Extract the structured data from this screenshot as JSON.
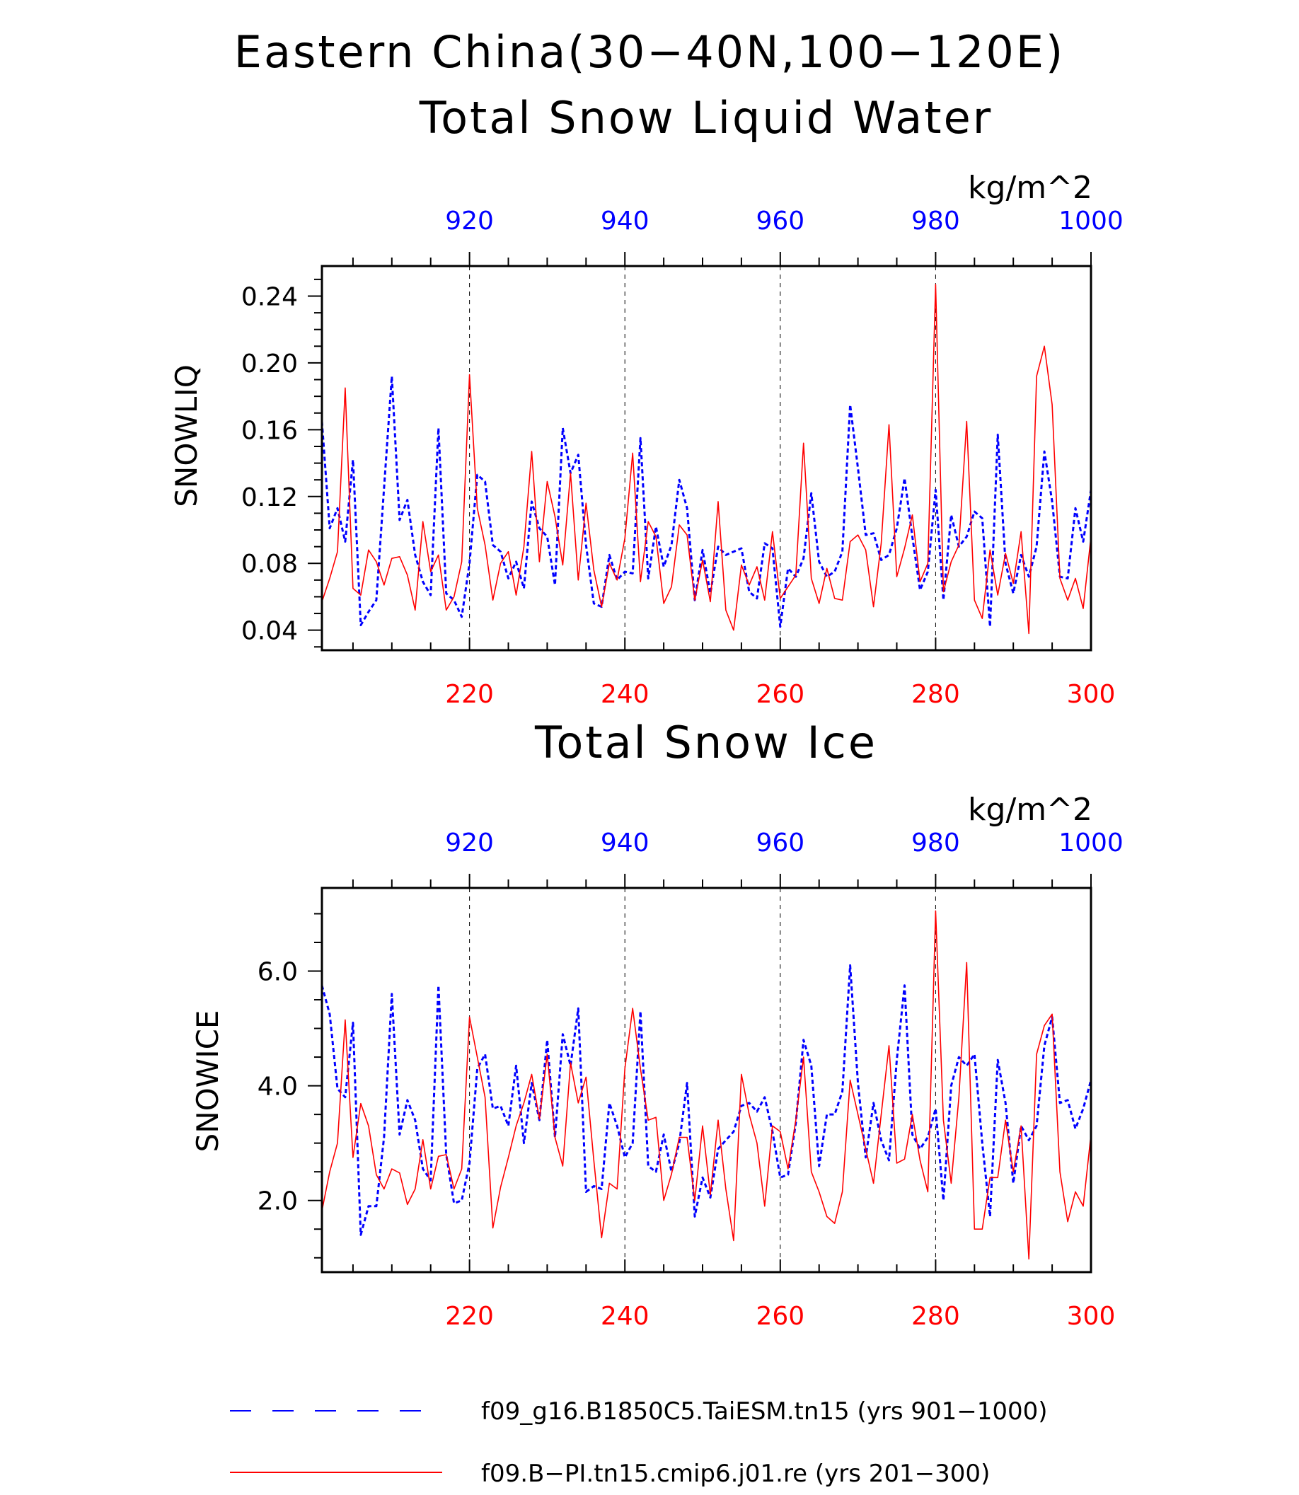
{
  "figure": {
    "title_line1": "Eastern China(30−40N,100−120E)",
    "legend": [
      {
        "label": "f09_g16.B1850C5.TaiESM.tn15 (yrs 901−1000)",
        "color": "#0000ff",
        "style": "dashed"
      },
      {
        "label": "f09.B−PI.tn15.cmip6.j01.re (yrs 201−300)",
        "color": "#ff0000",
        "style": "solid"
      }
    ]
  },
  "chart_data": [
    {
      "type": "line",
      "title": "Total Snow Liquid Water",
      "units": "kg/m^2",
      "ylabel": "SNOWLIQ",
      "ylim": [
        0.028,
        0.258
      ],
      "yticks": [
        0.04,
        0.08,
        0.12,
        0.16,
        0.2,
        0.24
      ],
      "yticklabels": [
        "0.04",
        "0.08",
        "0.12",
        "0.16",
        "0.20",
        "0.24"
      ],
      "bottom_axis": {
        "range": [
          201,
          300
        ],
        "ticks": [
          220,
          240,
          260,
          280,
          300
        ],
        "color": "#ff0000"
      },
      "top_axis": {
        "range": [
          901,
          1000
        ],
        "ticks": [
          920,
          940,
          960,
          980,
          1000
        ],
        "color": "#0000ff"
      },
      "gridlines_x": [
        220,
        240,
        260,
        280
      ],
      "series": [
        {
          "name": "f09.B−PI.tn15.cmip6.j01.re (yrs 201−300)",
          "color": "#ff0000",
          "style": "solid",
          "x_start": 201,
          "values": [
            0.057,
            0.071,
            0.087,
            0.185,
            0.065,
            0.061,
            0.088,
            0.081,
            0.067,
            0.083,
            0.084,
            0.073,
            0.052,
            0.105,
            0.075,
            0.085,
            0.052,
            0.06,
            0.081,
            0.193,
            0.113,
            0.091,
            0.058,
            0.08,
            0.087,
            0.061,
            0.09,
            0.147,
            0.081,
            0.129,
            0.108,
            0.079,
            0.134,
            0.07,
            0.116,
            0.076,
            0.054,
            0.08,
            0.07,
            0.095,
            0.146,
            0.069,
            0.105,
            0.096,
            0.056,
            0.066,
            0.103,
            0.097,
            0.058,
            0.082,
            0.057,
            0.117,
            0.052,
            0.04,
            0.079,
            0.067,
            0.078,
            0.058,
            0.099,
            0.059,
            0.066,
            0.073,
            0.152,
            0.071,
            0.056,
            0.077,
            0.059,
            0.058,
            0.093,
            0.097,
            0.088,
            0.054,
            0.092,
            0.163,
            0.072,
            0.089,
            0.109,
            0.069,
            0.08,
            0.247,
            0.063,
            0.081,
            0.091,
            0.165,
            0.058,
            0.047,
            0.088,
            0.061,
            0.086,
            0.068,
            0.099,
            0.038,
            0.192,
            0.21,
            0.175,
            0.071,
            0.058,
            0.071,
            0.053,
            0.096
          ]
        },
        {
          "name": "f09_g16.B1850C5.TaiESM.tn15 (yrs 901−1000)",
          "color": "#0000ff",
          "style": "dashed",
          "x_start": 901,
          "values": [
            0.165,
            0.101,
            0.113,
            0.093,
            0.142,
            0.043,
            0.051,
            0.058,
            0.125,
            0.192,
            0.106,
            0.118,
            0.085,
            0.069,
            0.061,
            0.161,
            0.062,
            0.058,
            0.048,
            0.08,
            0.133,
            0.129,
            0.091,
            0.087,
            0.071,
            0.081,
            0.065,
            0.117,
            0.101,
            0.096,
            0.067,
            0.161,
            0.134,
            0.145,
            0.091,
            0.056,
            0.054,
            0.085,
            0.07,
            0.075,
            0.074,
            0.155,
            0.071,
            0.102,
            0.078,
            0.091,
            0.13,
            0.113,
            0.058,
            0.088,
            0.062,
            0.09,
            0.085,
            0.087,
            0.089,
            0.063,
            0.059,
            0.092,
            0.089,
            0.042,
            0.077,
            0.072,
            0.083,
            0.122,
            0.081,
            0.072,
            0.075,
            0.087,
            0.175,
            0.137,
            0.097,
            0.098,
            0.082,
            0.085,
            0.101,
            0.131,
            0.096,
            0.064,
            0.075,
            0.124,
            0.058,
            0.109,
            0.09,
            0.096,
            0.111,
            0.107,
            0.042,
            0.157,
            0.08,
            0.062,
            0.085,
            0.072,
            0.09,
            0.147,
            0.117,
            0.072,
            0.071,
            0.113,
            0.093,
            0.124
          ]
        }
      ]
    },
    {
      "type": "line",
      "title": "Total Snow Ice",
      "units": "kg/m^2",
      "ylabel": "SNOWICE",
      "ylim": [
        0.75,
        7.45
      ],
      "yticks": [
        2.0,
        4.0,
        6.0
      ],
      "yticklabels": [
        "2.0",
        "4.0",
        "6.0"
      ],
      "bottom_axis": {
        "range": [
          201,
          300
        ],
        "ticks": [
          220,
          240,
          260,
          280,
          300
        ],
        "color": "#ff0000"
      },
      "top_axis": {
        "range": [
          901,
          1000
        ],
        "ticks": [
          920,
          940,
          960,
          980,
          1000
        ],
        "color": "#0000ff"
      },
      "gridlines_x": [
        220,
        240,
        260,
        280
      ],
      "series": [
        {
          "name": "f09.B−PI.tn15.cmip6.j01.re (yrs 201−300)",
          "color": "#ff0000",
          "style": "solid",
          "x_start": 201,
          "values": [
            1.82,
            2.5,
            3.0,
            5.15,
            2.75,
            3.69,
            3.3,
            2.45,
            2.2,
            2.55,
            2.48,
            1.93,
            2.2,
            3.06,
            2.2,
            2.77,
            2.8,
            2.2,
            2.55,
            5.2,
            4.5,
            3.8,
            1.52,
            2.23,
            2.75,
            3.3,
            3.7,
            4.2,
            3.42,
            4.55,
            3.1,
            2.6,
            4.4,
            3.7,
            4.15,
            2.7,
            1.35,
            2.3,
            2.2,
            4.3,
            5.35,
            4.3,
            3.4,
            3.45,
            2.0,
            2.46,
            3.1,
            3.1,
            2.0,
            3.3,
            2.1,
            3.4,
            2.2,
            1.3,
            4.2,
            3.5,
            3.0,
            1.9,
            3.3,
            3.2,
            2.55,
            3.4,
            4.5,
            2.5,
            2.15,
            1.72,
            1.6,
            2.15,
            4.1,
            3.5,
            2.9,
            2.3,
            3.5,
            4.7,
            2.65,
            2.72,
            3.5,
            2.7,
            2.15,
            7.05,
            3.4,
            2.3,
            3.8,
            6.15,
            1.5,
            1.5,
            2.4,
            2.4,
            3.4,
            2.5,
            3.3,
            0.98,
            4.55,
            5.05,
            5.25,
            2.5,
            1.63,
            2.15,
            1.9,
            3.15
          ]
        },
        {
          "name": "f09_g16.B1850C5.TaiESM.tn15 (yrs 901−1000)",
          "color": "#0000ff",
          "style": "dashed",
          "x_start": 901,
          "values": [
            5.75,
            5.25,
            3.95,
            3.8,
            5.1,
            1.4,
            1.9,
            1.9,
            3.1,
            5.6,
            3.15,
            3.75,
            3.4,
            2.55,
            2.35,
            5.75,
            2.8,
            1.95,
            2.0,
            2.65,
            4.3,
            4.55,
            3.6,
            3.65,
            3.3,
            4.35,
            3.0,
            4.05,
            3.4,
            4.8,
            3.1,
            4.9,
            4.35,
            5.35,
            2.15,
            2.25,
            2.2,
            3.7,
            3.3,
            2.75,
            3.0,
            5.3,
            2.6,
            2.5,
            3.15,
            2.5,
            3.0,
            4.05,
            1.72,
            2.4,
            2.05,
            2.9,
            3.05,
            3.2,
            3.65,
            3.7,
            3.55,
            3.8,
            3.2,
            2.4,
            2.45,
            3.35,
            4.8,
            4.35,
            2.6,
            3.5,
            3.5,
            3.9,
            6.1,
            4.05,
            2.75,
            3.7,
            3.05,
            2.7,
            4.45,
            5.75,
            3.15,
            2.9,
            3.1,
            3.6,
            2.0,
            4.0,
            4.5,
            4.35,
            4.55,
            3.0,
            1.72,
            4.45,
            3.7,
            2.3,
            3.3,
            3.05,
            3.3,
            4.7,
            5.2,
            3.7,
            3.75,
            3.25,
            3.6,
            4.1
          ]
        }
      ]
    }
  ]
}
